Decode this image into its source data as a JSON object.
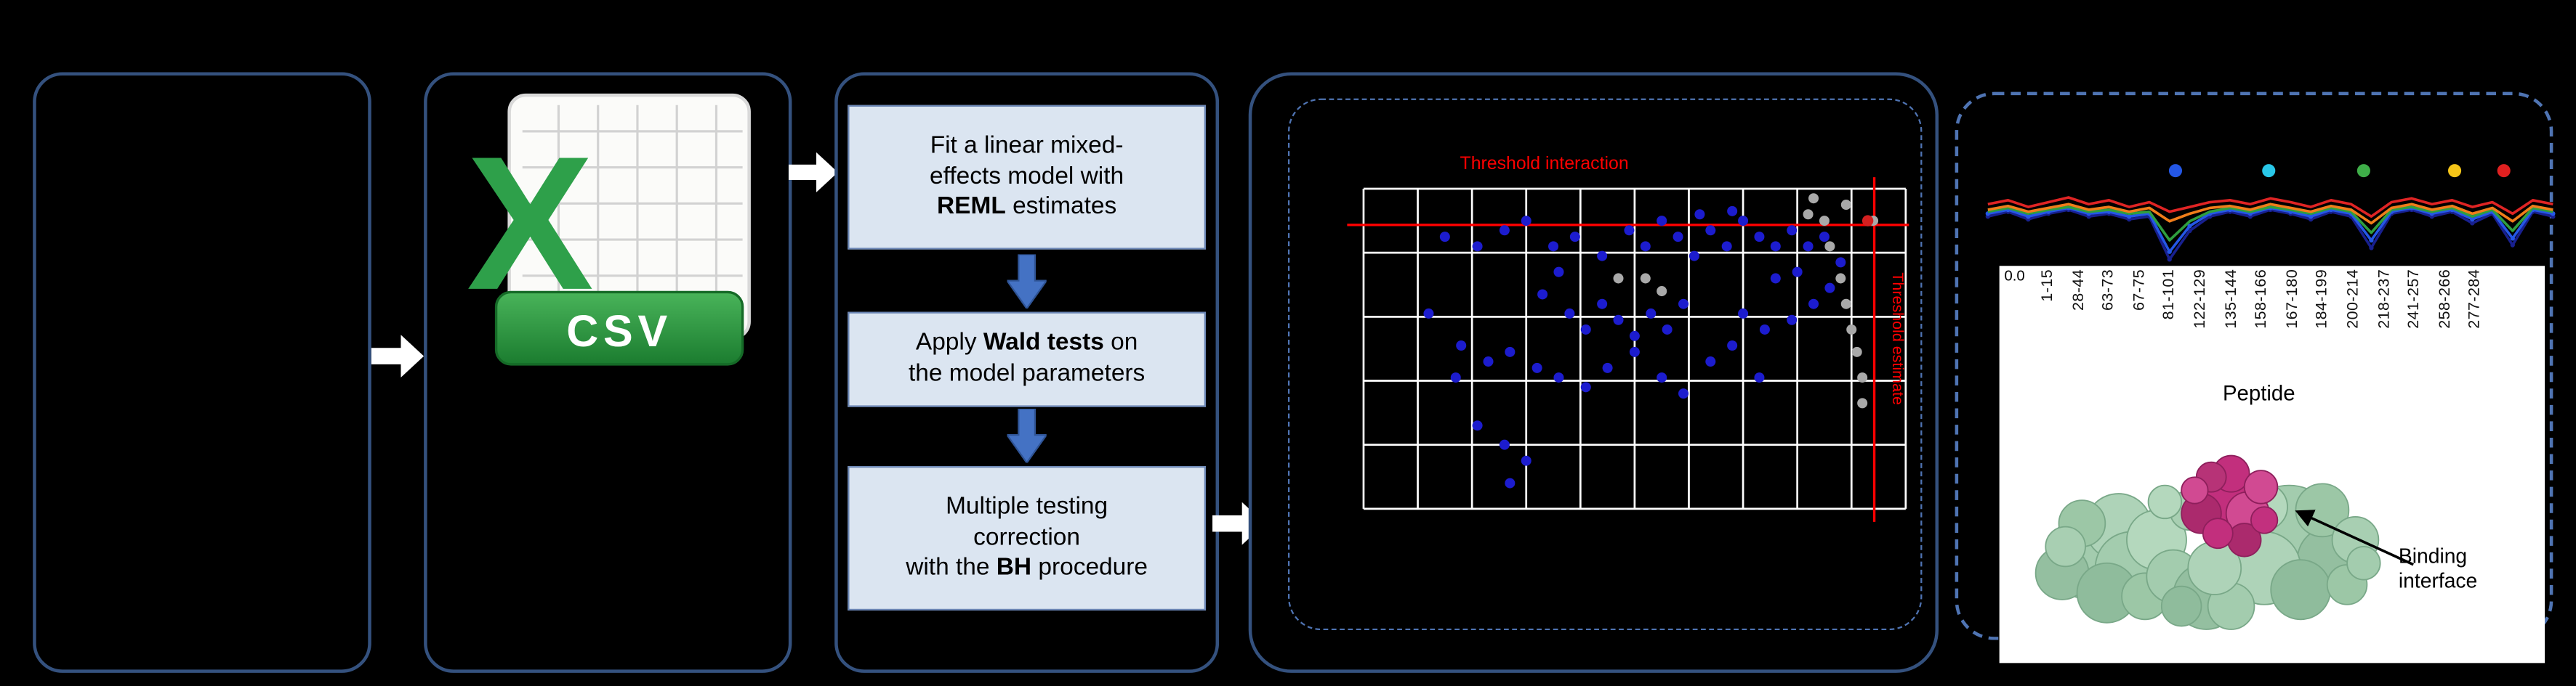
{
  "colors": {
    "panel_border": "#34517e",
    "dashed_border": "#4f74b3",
    "box_fill": "#dbe5f1",
    "box_border": "#6b86b5",
    "arrow_blue": "#4472c4",
    "arrow_blue_dark": "#2f5496",
    "white_arrow": "#ffffff",
    "threshold_red": "#ff0000",
    "dot_blue": "#1c1cce",
    "dot_gray": "#a9a9a9",
    "dot_red": "#d42020",
    "csv_green": "#2ea04a",
    "protein_green": "#a3ccae",
    "protein_magenta": "#c22f7d"
  },
  "flow": {
    "csv_label": "CSV",
    "steps": [
      {
        "before": "Fit a linear mixed-\neffects model with\n",
        "bold": "REML",
        "after": " estimates"
      },
      {
        "before": "Apply ",
        "bold": "Wald tests",
        "after": " on\nthe model parameters"
      },
      {
        "before": "Multiple testing\ncorrection\nwith the ",
        "bold": "BH",
        "after": " procedure"
      }
    ]
  },
  "scatter": {
    "title": "Threshold interaction",
    "side_label": "Threshold estimate",
    "threshold_x": 0.942,
    "threshold_y": 0.113,
    "points_blue": [
      [
        0.15,
        0.15
      ],
      [
        0.21,
        0.18
      ],
      [
        0.26,
        0.13
      ],
      [
        0.3,
        0.1
      ],
      [
        0.35,
        0.18
      ],
      [
        0.36,
        0.26
      ],
      [
        0.39,
        0.15
      ],
      [
        0.44,
        0.21
      ],
      [
        0.49,
        0.13
      ],
      [
        0.52,
        0.18
      ],
      [
        0.55,
        0.1
      ],
      [
        0.58,
        0.15
      ],
      [
        0.61,
        0.21
      ],
      [
        0.64,
        0.13
      ],
      [
        0.67,
        0.18
      ],
      [
        0.7,
        0.1
      ],
      [
        0.73,
        0.15
      ],
      [
        0.76,
        0.18
      ],
      [
        0.79,
        0.13
      ],
      [
        0.82,
        0.18
      ],
      [
        0.85,
        0.15
      ],
      [
        0.62,
        0.08
      ],
      [
        0.68,
        0.07
      ],
      [
        0.33,
        0.33
      ],
      [
        0.38,
        0.39
      ],
      [
        0.41,
        0.44
      ],
      [
        0.44,
        0.36
      ],
      [
        0.47,
        0.41
      ],
      [
        0.5,
        0.46
      ],
      [
        0.53,
        0.39
      ],
      [
        0.56,
        0.44
      ],
      [
        0.59,
        0.36
      ],
      [
        0.18,
        0.49
      ],
      [
        0.23,
        0.54
      ],
      [
        0.27,
        0.51
      ],
      [
        0.32,
        0.56
      ],
      [
        0.36,
        0.59
      ],
      [
        0.41,
        0.62
      ],
      [
        0.45,
        0.56
      ],
      [
        0.5,
        0.51
      ],
      [
        0.55,
        0.59
      ],
      [
        0.59,
        0.64
      ],
      [
        0.64,
        0.54
      ],
      [
        0.68,
        0.49
      ],
      [
        0.73,
        0.59
      ],
      [
        0.26,
        0.8
      ],
      [
        0.3,
        0.85
      ],
      [
        0.12,
        0.39
      ],
      [
        0.17,
        0.59
      ],
      [
        0.7,
        0.39
      ],
      [
        0.74,
        0.44
      ],
      [
        0.79,
        0.41
      ],
      [
        0.83,
        0.36
      ],
      [
        0.86,
        0.31
      ],
      [
        0.88,
        0.23
      ],
      [
        0.8,
        0.26
      ],
      [
        0.76,
        0.28
      ],
      [
        0.27,
        0.92
      ],
      [
        0.21,
        0.74
      ]
    ],
    "points_gray": [
      [
        0.82,
        0.08
      ],
      [
        0.85,
        0.1
      ],
      [
        0.86,
        0.18
      ],
      [
        0.88,
        0.28
      ],
      [
        0.89,
        0.36
      ],
      [
        0.9,
        0.44
      ],
      [
        0.91,
        0.51
      ],
      [
        0.92,
        0.59
      ],
      [
        0.92,
        0.67
      ],
      [
        0.89,
        0.05
      ],
      [
        0.94,
        0.1
      ],
      [
        0.83,
        0.03
      ],
      [
        0.52,
        0.28
      ],
      [
        0.55,
        0.32
      ],
      [
        0.47,
        0.28
      ]
    ],
    "points_red": [
      [
        0.93,
        0.1
      ]
    ]
  },
  "panel5": {
    "ytick": "0.0",
    "xlabel": "Peptide",
    "peptide_labels": [
      "1-15",
      "28-44",
      "63-73",
      "67-75",
      "81-101",
      "122-129",
      "135-144",
      "158-166",
      "167-180",
      "184-199",
      "200-214",
      "218-237",
      "241-257",
      "258-266",
      "277-284"
    ],
    "binding_label": "Binding\ninterface",
    "top_dots": {
      "x": [
        0.332,
        0.497,
        0.665,
        0.826,
        0.913
      ],
      "colors": [
        "#2457e6",
        "#29c7e8",
        "#3fae49",
        "#f5c518",
        "#e02020"
      ]
    },
    "series": [
      {
        "name": "navy",
        "color": "#18208f",
        "markers": true,
        "values": [
          0.55,
          0.5,
          0.58,
          0.52,
          0.48,
          0.55,
          0.52,
          0.58,
          0.55,
          1.0,
          0.7,
          0.55,
          0.5,
          0.55,
          0.48,
          0.52,
          0.58,
          0.5,
          0.55,
          0.88,
          0.52,
          0.48,
          0.55,
          0.5,
          0.62,
          0.52,
          0.85,
          0.5,
          0.55
        ]
      },
      {
        "name": "blue",
        "color": "#2457e6",
        "markers": true,
        "values": [
          0.52,
          0.48,
          0.55,
          0.5,
          0.46,
          0.52,
          0.5,
          0.55,
          0.52,
          0.92,
          0.65,
          0.52,
          0.48,
          0.52,
          0.46,
          0.5,
          0.55,
          0.48,
          0.52,
          0.8,
          0.5,
          0.46,
          0.52,
          0.48,
          0.58,
          0.5,
          0.78,
          0.48,
          0.52
        ]
      },
      {
        "name": "green",
        "color": "#2f9e3f",
        "markers": false,
        "values": [
          0.5,
          0.46,
          0.52,
          0.48,
          0.45,
          0.5,
          0.48,
          0.52,
          0.5,
          0.8,
          0.6,
          0.5,
          0.46,
          0.5,
          0.45,
          0.48,
          0.52,
          0.46,
          0.5,
          0.72,
          0.48,
          0.45,
          0.5,
          0.46,
          0.55,
          0.48,
          0.7,
          0.46,
          0.5
        ]
      },
      {
        "name": "orange",
        "color": "#f07d1a",
        "markers": false,
        "values": [
          0.48,
          0.44,
          0.5,
          0.46,
          0.42,
          0.48,
          0.45,
          0.5,
          0.46,
          0.6,
          0.52,
          0.46,
          0.44,
          0.48,
          0.42,
          0.46,
          0.5,
          0.44,
          0.48,
          0.62,
          0.46,
          0.42,
          0.48,
          0.44,
          0.52,
          0.46,
          0.6,
          0.44,
          0.48
        ]
      },
      {
        "name": "red",
        "color": "#e02424",
        "markers": false,
        "values": [
          0.42,
          0.38,
          0.45,
          0.4,
          0.35,
          0.42,
          0.38,
          0.45,
          0.4,
          0.5,
          0.45,
          0.4,
          0.38,
          0.42,
          0.36,
          0.4,
          0.45,
          0.38,
          0.42,
          0.55,
          0.4,
          0.36,
          0.42,
          0.38,
          0.45,
          0.4,
          0.52,
          0.38,
          0.42
        ]
      }
    ]
  }
}
